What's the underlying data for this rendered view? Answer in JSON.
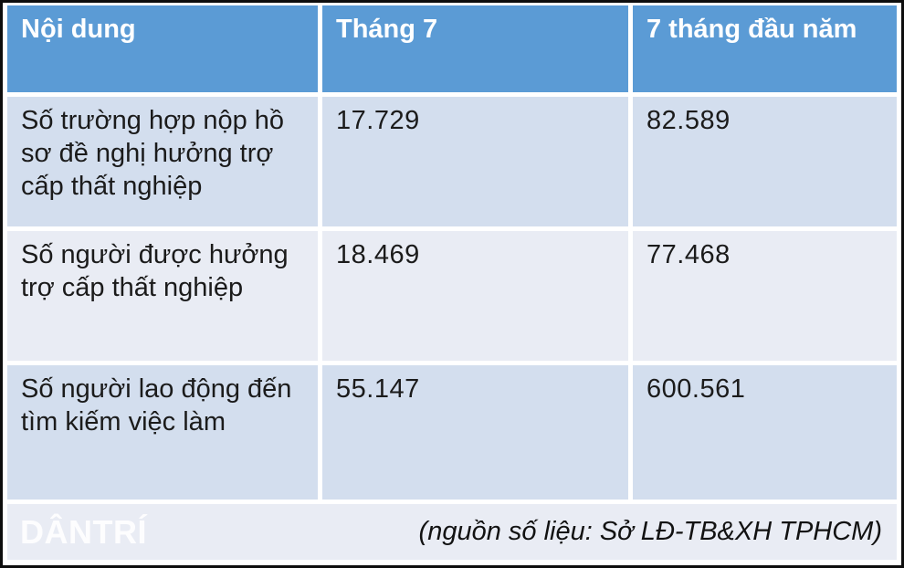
{
  "table": {
    "columns": [
      "Nội dung",
      "Tháng 7",
      "7 tháng đầu năm"
    ],
    "rows": [
      {
        "label": "Số trường hợp nộp hồ sơ đề nghị hưởng trợ cấp thất nghiệp",
        "values": [
          "17.729",
          "82.589"
        ]
      },
      {
        "label": "Số người được hưởng trợ cấp thất nghiệp",
        "values": [
          "18.469",
          "77.468"
        ]
      },
      {
        "label": "Số người lao động đến tìm kiếm việc làm",
        "values": [
          "55.147",
          "600.561"
        ]
      }
    ]
  },
  "footer": {
    "logo_text": "DÂNTRÍ",
    "source": "(nguồn số liệu: Sở LĐ-TB&XH TPHCM)"
  },
  "colors": {
    "header_bg": "#5B9BD5",
    "header_text": "#FFFFFF",
    "row_dark_bg": "#D3DEEE",
    "row_light_bg": "#E9ECF4",
    "body_text": "#1B1B1B",
    "outer_border": "#0D0D0D"
  },
  "chart_data": {
    "type": "table",
    "title": "",
    "columns": [
      "Nội dung",
      "Tháng 7",
      "7 tháng đầu năm"
    ],
    "rows": [
      [
        "Số trường hợp nộp hồ sơ đề nghị hưởng trợ cấp thất nghiệp",
        "17.729",
        "82.589"
      ],
      [
        "Số người được hưởng trợ cấp thất nghiệp",
        "18.469",
        "77.468"
      ],
      [
        "Số người lao động đến tìm kiếm việc làm",
        "55.147",
        "600.561"
      ]
    ],
    "source_note": "(nguồn số liệu: Sở LĐ-TB&XH TPHCM)"
  }
}
